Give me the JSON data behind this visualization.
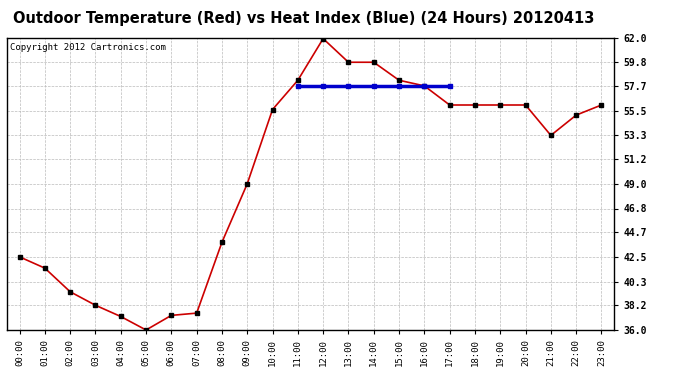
{
  "title": "Outdoor Temperature (Red) vs Heat Index (Blue) (24 Hours) 20120413",
  "copyright_text": "Copyright 2012 Cartronics.com",
  "x_labels": [
    "00:00",
    "01:00",
    "02:00",
    "03:00",
    "04:00",
    "05:00",
    "06:00",
    "07:00",
    "08:00",
    "09:00",
    "10:00",
    "11:00",
    "12:00",
    "13:00",
    "14:00",
    "15:00",
    "16:00",
    "17:00",
    "18:00",
    "19:00",
    "20:00",
    "21:00",
    "22:00",
    "23:00"
  ],
  "temp_red": [
    42.5,
    41.5,
    39.4,
    38.2,
    37.2,
    36.0,
    37.3,
    37.5,
    43.8,
    49.0,
    55.6,
    58.2,
    61.9,
    59.8,
    59.8,
    58.2,
    57.7,
    56.0,
    56.0,
    56.0,
    56.0,
    53.3,
    55.1,
    56.0
  ],
  "heat_blue": [
    null,
    null,
    null,
    null,
    null,
    null,
    null,
    null,
    null,
    null,
    null,
    57.7,
    57.7,
    57.7,
    57.7,
    57.7,
    57.7,
    57.7,
    null,
    null,
    null,
    null,
    null,
    null
  ],
  "y_ticks": [
    36.0,
    38.2,
    40.3,
    42.5,
    44.7,
    46.8,
    49.0,
    51.2,
    53.3,
    55.5,
    57.7,
    59.8,
    62.0
  ],
  "ylim": [
    36.0,
    62.0
  ],
  "red_color": "#cc0000",
  "blue_color": "#0000cc",
  "grid_color": "#bbbbbb",
  "background_color": "#ffffff",
  "title_fontsize": 10.5,
  "copyright_fontsize": 6.5,
  "marker_color": "#000000"
}
